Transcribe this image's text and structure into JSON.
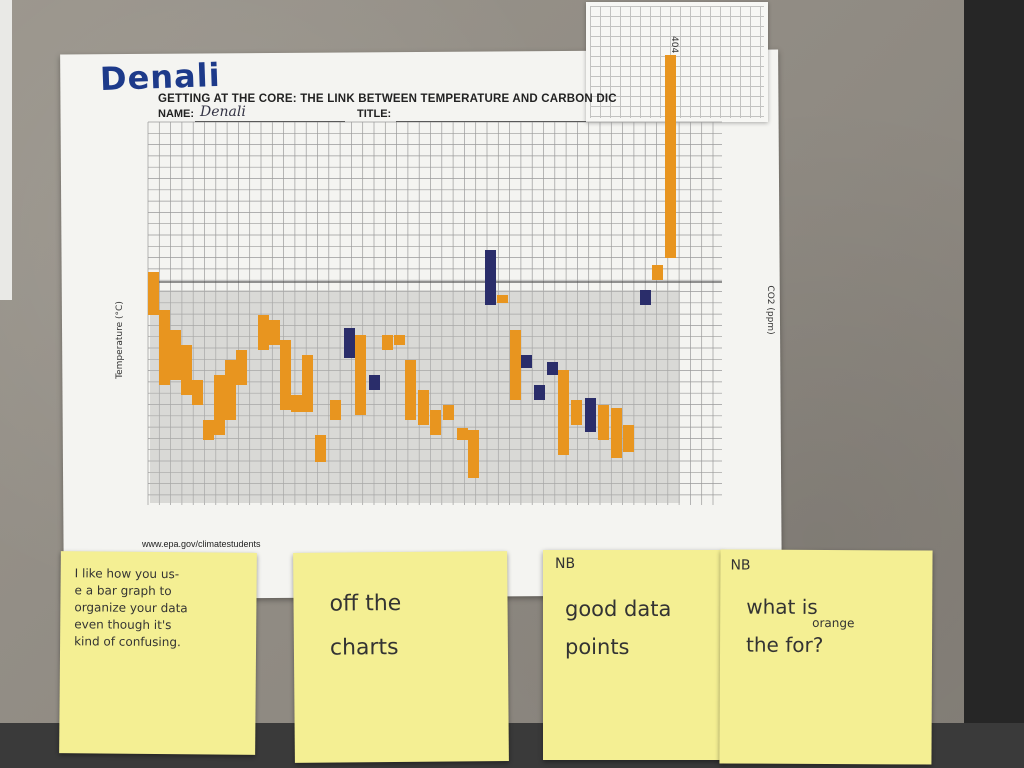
{
  "worksheet": {
    "handwritten_title": "Denali",
    "heading": "GETTING AT THE CORE: THE LINK BETWEEN TEMPERATURE AND CARBON DIC",
    "name_label": "NAME:",
    "name_value": "Denali",
    "title_label": "TITLE:",
    "website": "www.epa.gov/climatestudents",
    "y_axis_label": "Temperature (°C)",
    "right_axis_label": "CO2 (ppm)"
  },
  "chart_data": {
    "type": "bar",
    "description_note": "",
    "series": [
      {
        "name": "",
        "color": "#e8951f"
      },
      {
        "name": "",
        "color": "#2a2d6a"
      }
    ],
    "top_label": "404"
  },
  "notes": [
    {
      "lines": [
        "I like how you us-",
        "e a bar graph to",
        "organize your data",
        "even though it's",
        "kind of confusing."
      ]
    },
    {
      "lines": [
        "off the",
        "charts"
      ]
    },
    {
      "header": "NB",
      "lines": [
        "good data",
        "points"
      ]
    },
    {
      "header": "NB",
      "insert": "orange",
      "lines": [
        "what is",
        "the      for?"
      ]
    }
  ],
  "colors": {
    "orange": "#e8951f",
    "navy": "#2a2d6a",
    "note": "#f4ef93"
  }
}
